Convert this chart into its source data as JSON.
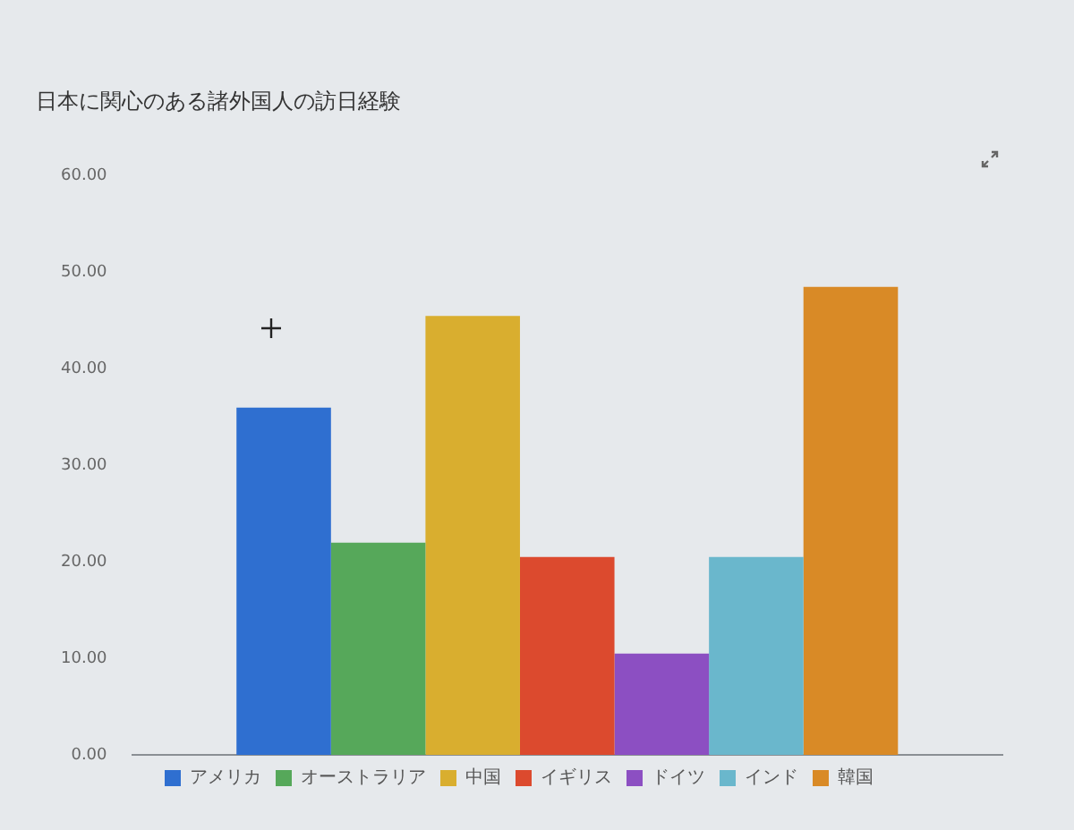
{
  "chart_data": {
    "type": "bar",
    "title": "日本に関心のある諸外国人の訪日経験",
    "categories": [
      null
    ],
    "series": [
      {
        "name": "アメリカ",
        "color": "#2f6fd0",
        "values": [
          36
        ]
      },
      {
        "name": "オーストラリア",
        "color": "#56a85a",
        "values": [
          22
        ]
      },
      {
        "name": "中国",
        "color": "#d9ae2f",
        "values": [
          45.5
        ]
      },
      {
        "name": "イギリス",
        "color": "#dc4a2e",
        "values": [
          20.5
        ]
      },
      {
        "name": "ドイツ",
        "color": "#8c4fc2",
        "values": [
          10.5
        ]
      },
      {
        "name": "インド",
        "color": "#6ab7cc",
        "values": [
          20.5
        ]
      },
      {
        "name": "韓国",
        "color": "#d98a26",
        "values": [
          48.5
        ]
      }
    ],
    "ylim": [
      0,
      60
    ],
    "yticks": [
      {
        "value": 0,
        "label": "0.00"
      },
      {
        "value": 10,
        "label": "10.00"
      },
      {
        "value": 20,
        "label": "20.00"
      },
      {
        "value": 30,
        "label": "30.00"
      },
      {
        "value": 40,
        "label": "40.00"
      },
      {
        "value": 50,
        "label": "50.00"
      },
      {
        "value": 60,
        "label": "60.00"
      }
    ],
    "legend": "bottom",
    "tick_labels": "y"
  }
}
